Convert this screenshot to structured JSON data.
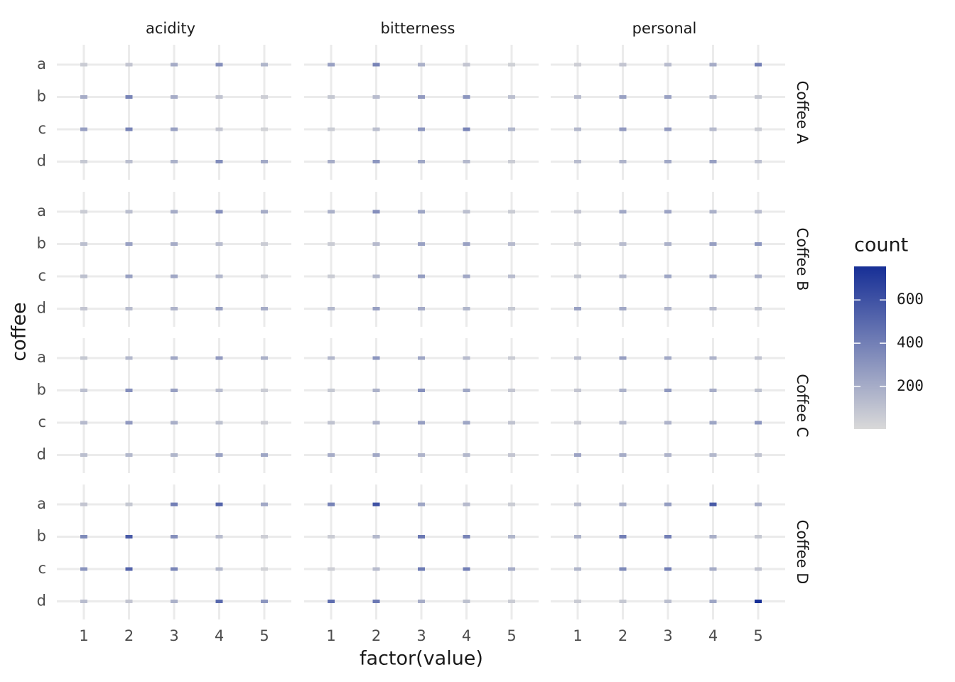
{
  "chart_data": {
    "type": "heatmap",
    "x_label": "factor(value)",
    "y_label": "coffee",
    "facet_cols": [
      "acidity",
      "bitterness",
      "personal"
    ],
    "facet_rows": [
      "Coffee A",
      "Coffee B",
      "Coffee C",
      "Coffee D"
    ],
    "x_categories": [
      "1",
      "2",
      "3",
      "4",
      "5"
    ],
    "y_categories": [
      "a",
      "b",
      "c",
      "d"
    ],
    "values": [
      [
        [
          [
            60,
            90,
            200,
            330,
            160
          ],
          [
            200,
            380,
            200,
            100,
            50
          ],
          [
            260,
            380,
            250,
            90,
            30
          ],
          [
            80,
            120,
            180,
            340,
            220
          ]
        ],
        [
          [
            250,
            380,
            180,
            90,
            40
          ],
          [
            80,
            130,
            280,
            300,
            120
          ],
          [
            60,
            120,
            300,
            380,
            160
          ],
          [
            200,
            300,
            230,
            150,
            60
          ]
        ],
        [
          [
            50,
            90,
            130,
            200,
            400
          ],
          [
            130,
            250,
            250,
            150,
            80
          ],
          [
            150,
            280,
            280,
            140,
            60
          ],
          [
            130,
            170,
            220,
            260,
            120
          ]
        ]
      ],
      [
        [
          [
            60,
            120,
            200,
            330,
            200
          ],
          [
            120,
            250,
            200,
            130,
            60
          ],
          [
            110,
            250,
            220,
            150,
            60
          ],
          [
            90,
            130,
            170,
            260,
            200
          ]
        ],
        [
          [
            180,
            330,
            230,
            120,
            60
          ],
          [
            60,
            140,
            250,
            250,
            140
          ],
          [
            60,
            150,
            270,
            220,
            130
          ],
          [
            150,
            260,
            210,
            160,
            80
          ]
        ],
        [
          [
            90,
            220,
            240,
            180,
            130
          ],
          [
            60,
            130,
            180,
            260,
            300
          ],
          [
            80,
            150,
            230,
            220,
            190
          ],
          [
            250,
            220,
            170,
            140,
            110
          ]
        ]
      ],
      [
        [
          [
            80,
            150,
            220,
            280,
            180
          ],
          [
            120,
            330,
            260,
            130,
            60
          ],
          [
            140,
            280,
            190,
            110,
            50
          ],
          [
            120,
            150,
            160,
            250,
            230
          ]
        ],
        [
          [
            150,
            300,
            230,
            130,
            60
          ],
          [
            80,
            180,
            330,
            230,
            90
          ],
          [
            100,
            170,
            260,
            230,
            100
          ],
          [
            200,
            220,
            170,
            150,
            90
          ]
        ],
        [
          [
            120,
            260,
            220,
            170,
            100
          ],
          [
            90,
            180,
            290,
            200,
            110
          ],
          [
            70,
            130,
            170,
            230,
            300
          ],
          [
            240,
            200,
            170,
            150,
            100
          ]
        ]
      ],
      [
        [
          [
            90,
            80,
            400,
            520,
            220
          ],
          [
            350,
            560,
            330,
            130,
            50
          ],
          [
            310,
            520,
            370,
            150,
            30
          ],
          [
            130,
            90,
            180,
            500,
            300
          ]
        ],
        [
          [
            380,
            600,
            230,
            140,
            60
          ],
          [
            60,
            150,
            430,
            380,
            160
          ],
          [
            50,
            130,
            420,
            400,
            200
          ],
          [
            480,
            430,
            200,
            110,
            60
          ]
        ],
        [
          [
            130,
            200,
            270,
            560,
            200
          ],
          [
            180,
            400,
            400,
            190,
            80
          ],
          [
            160,
            350,
            400,
            200,
            100
          ],
          [
            60,
            80,
            120,
            230,
            755
          ]
        ]
      ]
    ],
    "legend_title": "count",
    "colorlim": [
      3,
      755
    ],
    "colorticks": [
      200,
      400,
      600
    ],
    "low_color": "#d9d9d9",
    "high_color": "#172f96",
    "grid": true
  }
}
